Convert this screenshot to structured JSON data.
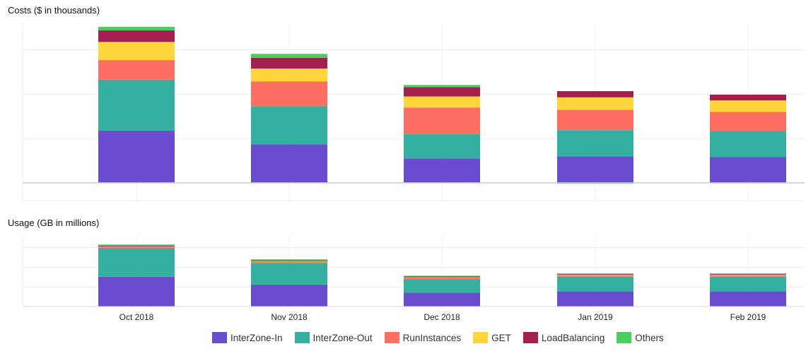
{
  "chart_data": [
    {
      "type": "bar",
      "stacked": true,
      "title": "Costs ($ in thousands)",
      "categories": [
        "Oct 2018",
        "Nov 2018",
        "Dec 2018",
        "Jan 2019",
        "Feb 2019"
      ],
      "ylim": [
        -0.4,
        3.6
      ],
      "gridlines": [
        -0.4,
        0,
        1,
        2,
        3
      ],
      "series": [
        {
          "name": "InterZone-In",
          "values": [
            1.18,
            0.87,
            0.55,
            0.6,
            0.58
          ]
        },
        {
          "name": "InterZone-Out",
          "values": [
            1.15,
            0.86,
            0.55,
            0.59,
            0.59
          ]
        },
        {
          "name": "RunInstances",
          "values": [
            0.44,
            0.56,
            0.6,
            0.46,
            0.43
          ]
        },
        {
          "name": "GET",
          "values": [
            0.41,
            0.29,
            0.25,
            0.28,
            0.26
          ]
        },
        {
          "name": "LoadBalancing",
          "values": [
            0.26,
            0.24,
            0.21,
            0.14,
            0.13
          ]
        },
        {
          "name": "Others",
          "values": [
            0.08,
            0.09,
            0.05,
            -0.02,
            -0.01
          ]
        }
      ]
    },
    {
      "type": "bar",
      "stacked": true,
      "title": "Usage (GB in millions)",
      "categories": [
        "Oct 2018",
        "Nov 2018",
        "Dec 2018",
        "Jan 2019",
        "Feb 2019"
      ],
      "ylim": [
        0,
        3.6
      ],
      "gridlines": [
        0,
        1,
        2,
        3
      ],
      "series": [
        {
          "name": "InterZone-In",
          "values": [
            1.52,
            1.12,
            0.7,
            0.77,
            0.77
          ]
        },
        {
          "name": "InterZone-Out",
          "values": [
            1.45,
            1.1,
            0.7,
            0.75,
            0.75
          ]
        },
        {
          "name": "RunInstances",
          "values": [
            0.06,
            0.06,
            0.06,
            0.06,
            0.06
          ]
        },
        {
          "name": "GET",
          "values": [
            0.03,
            0.03,
            0.03,
            0.03,
            0.03
          ]
        },
        {
          "name": "LoadBalancing",
          "values": [
            0.04,
            0.04,
            0.04,
            0.04,
            0.04
          ]
        },
        {
          "name": "Others",
          "values": [
            0.06,
            0.06,
            0.04,
            0.04,
            0.04
          ]
        }
      ]
    }
  ],
  "colors": {
    "InterZone-In": "#6a4ccf",
    "InterZone-Out": "#35b0a0",
    "RunInstances": "#fe6e62",
    "GET": "#fed63c",
    "LoadBalancing": "#a41f50",
    "Others": "#4ccd5e"
  },
  "legend": [
    "InterZone-In",
    "InterZone-Out",
    "RunInstances",
    "GET",
    "LoadBalancing",
    "Others"
  ]
}
